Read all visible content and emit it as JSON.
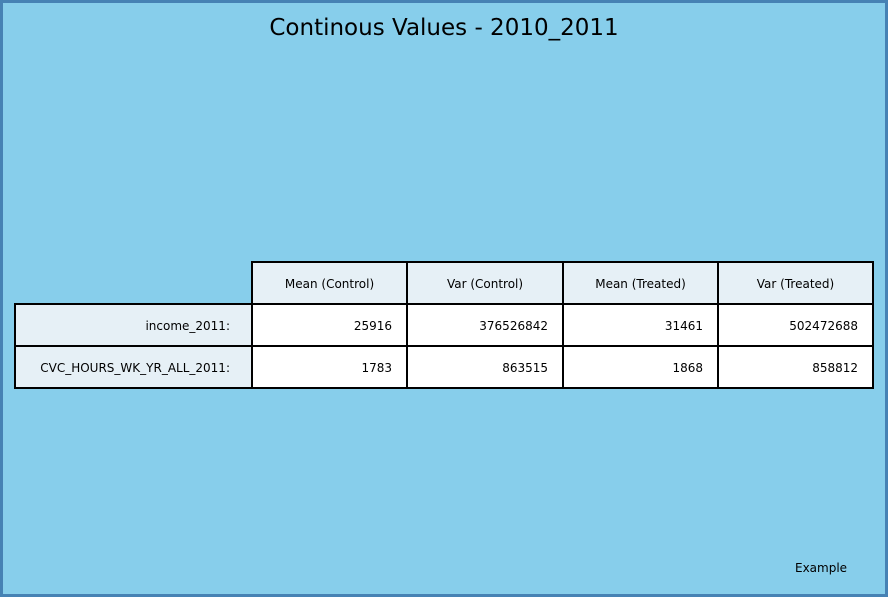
{
  "title": "Continous Values - 2010_2011",
  "footer_text": "Example",
  "chart_data": {
    "type": "table",
    "title": "Continous Values - 2010_2011",
    "columns": [
      "Mean (Control)",
      "Var (Control)",
      "Mean (Treated)",
      "Var (Treated)"
    ],
    "rows": [
      {
        "label": "income_2011:",
        "values": [
          "25916",
          "376526842",
          "31461",
          "502472688"
        ]
      },
      {
        "label": "CVC_HOURS_WK_YR_ALL_2011:",
        "values": [
          "1783",
          "863515",
          "1868",
          "858812"
        ]
      }
    ]
  },
  "colors": {
    "background": "#87ceeb",
    "frame_border": "#4682b4",
    "header_fill": "#e6f0f6",
    "cell_fill": "#ffffff",
    "grid_line": "#000000"
  }
}
